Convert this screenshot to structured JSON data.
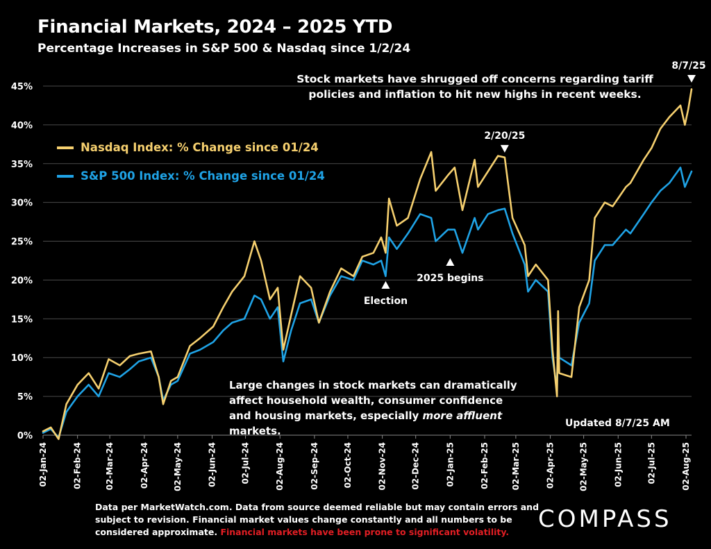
{
  "title": "Financial Markets, 2024 – 2025 YTD",
  "subtitle": "Percentage Increases in S&P 500 & Nasdaq since 1/2/24",
  "note_top": "Stock markets have shrugged off concerns regarding tariff policies and inflation to hit new highs in recent weeks.",
  "note_mid_pre": "Large changes in stock markets can dramatically affect household wealth, consumer confidence and housing markets, especially ",
  "note_mid_em": "more affluent",
  "note_mid_post": " markets.",
  "updated": "Updated 8/7/25 AM",
  "footer_text": "Data per MarketWatch.com. Data from source deemed reliable but may contain errors and subject to revision. Financial market values change constantly and all numbers to be considered approximate.",
  "footer_warning": "Financial markets have been prone to significant volatility.",
  "logo": "COMPASS",
  "colors": {
    "nasdaq": "#f6d06f",
    "sp500": "#1fa3e6",
    "grid": "#4a4a4a",
    "warning": "#e31e24"
  },
  "chart_data": {
    "type": "line",
    "title": "Financial Markets, 2024 – 2025 YTD",
    "subtitle": "Percentage Increases in S&P 500 & Nasdaq since 1/2/24",
    "ylim": [
      0,
      45
    ],
    "y_ticks": [
      0,
      5,
      10,
      15,
      20,
      25,
      30,
      35,
      40,
      45
    ],
    "y_tick_labels": [
      "0%",
      "5%",
      "10%",
      "15%",
      "20%",
      "25%",
      "30%",
      "35%",
      "40%",
      "45%"
    ],
    "x_tick_labels": [
      "02-Jan-24",
      "02-Feb-24",
      "02-Mar-24",
      "02-Apr-24",
      "02-May-24",
      "02-Jun-24",
      "02-Jul-24",
      "02-Aug-24",
      "02-Sep-24",
      "02-Oct-24",
      "02-Nov-24",
      "02-Dec-24",
      "02-Jan-25",
      "02-Feb-25",
      "02-Mar-25",
      "02-Apr-25",
      "02-May-25",
      "02-Jun-25",
      "02-Jul-25",
      "02-Aug-25"
    ],
    "x": [
      "2024-01-02",
      "2024-01-09",
      "2024-01-16",
      "2024-01-23",
      "2024-02-02",
      "2024-02-12",
      "2024-02-21",
      "2024-03-01",
      "2024-03-11",
      "2024-03-20",
      "2024-03-28",
      "2024-04-08",
      "2024-04-15",
      "2024-04-19",
      "2024-04-26",
      "2024-05-02",
      "2024-05-13",
      "2024-05-22",
      "2024-06-03",
      "2024-06-12",
      "2024-06-20",
      "2024-07-01",
      "2024-07-10",
      "2024-07-16",
      "2024-07-24",
      "2024-07-31",
      "2024-08-05",
      "2024-08-12",
      "2024-08-20",
      "2024-08-30",
      "2024-09-06",
      "2024-09-16",
      "2024-09-26",
      "2024-10-07",
      "2024-10-15",
      "2024-10-25",
      "2024-11-01",
      "2024-11-05",
      "2024-11-08",
      "2024-11-15",
      "2024-11-25",
      "2024-12-06",
      "2024-12-16",
      "2024-12-20",
      "2024-12-31",
      "2025-01-06",
      "2025-01-13",
      "2025-01-24",
      "2025-01-27",
      "2025-02-05",
      "2025-02-14",
      "2025-02-20",
      "2025-02-27",
      "2025-03-10",
      "2025-03-13",
      "2025-03-20",
      "2025-03-31",
      "2025-04-04",
      "2025-04-08",
      "2025-04-09",
      "2025-04-10",
      "2025-04-21",
      "2025-04-28",
      "2025-05-07",
      "2025-05-12",
      "2025-05-21",
      "2025-05-28",
      "2025-06-09",
      "2025-06-13",
      "2025-06-25",
      "2025-07-02",
      "2025-07-10",
      "2025-07-18",
      "2025-07-28",
      "2025-08-01",
      "2025-08-04",
      "2025-08-07"
    ],
    "series": [
      {
        "name": "Nasdaq Index: % Change since 01/24",
        "values": [
          0.5,
          1.0,
          -0.5,
          4.0,
          6.5,
          8.0,
          6.0,
          9.8,
          9.0,
          10.2,
          10.5,
          10.8,
          7.5,
          4.0,
          7.0,
          7.5,
          11.5,
          12.5,
          14.0,
          16.5,
          18.5,
          20.5,
          25.0,
          22.5,
          17.5,
          19.0,
          11.0,
          15.5,
          20.5,
          19.0,
          14.5,
          18.5,
          21.5,
          20.5,
          23.0,
          23.5,
          25.5,
          23.5,
          30.5,
          27.0,
          28.0,
          33.0,
          36.5,
          31.5,
          33.5,
          34.5,
          29.0,
          35.5,
          32.0,
          34.0,
          36.0,
          35.8,
          28.0,
          24.5,
          20.5,
          22.0,
          20.0,
          11.0,
          5.0,
          16.0,
          8.0,
          7.5,
          16.5,
          20.0,
          28.0,
          30.0,
          29.5,
          32.0,
          32.5,
          35.5,
          37.0,
          39.5,
          41.0,
          42.5,
          40.0,
          42.0,
          44.6
        ]
      },
      {
        "name": "S&P 500 Index: % Change since 01/24",
        "values": [
          0.3,
          0.8,
          -0.3,
          3.0,
          5.0,
          6.5,
          5.0,
          8.0,
          7.5,
          8.5,
          9.5,
          10.0,
          7.5,
          4.5,
          6.5,
          7.0,
          10.5,
          11.0,
          12.0,
          13.5,
          14.5,
          15.0,
          18.0,
          17.5,
          15.0,
          16.5,
          9.5,
          13.5,
          17.0,
          17.5,
          14.5,
          18.0,
          20.5,
          20.0,
          22.5,
          22.0,
          22.5,
          20.5,
          25.5,
          24.0,
          26.0,
          28.5,
          28.0,
          25.0,
          26.5,
          26.5,
          23.5,
          28.0,
          26.5,
          28.5,
          29.0,
          29.2,
          26.0,
          22.0,
          18.5,
          20.0,
          18.5,
          10.0,
          6.0,
          14.0,
          10.0,
          9.0,
          14.5,
          17.0,
          22.5,
          24.5,
          24.5,
          26.5,
          26.0,
          28.5,
          30.0,
          31.5,
          32.5,
          34.5,
          32.0,
          33.0,
          34.0
        ]
      }
    ],
    "annotations": [
      {
        "x": "2024-11-05",
        "label": "Election",
        "marker": "up-arrow-below"
      },
      {
        "x": "2025-01-02",
        "label": "2025 begins",
        "marker": "up-arrow-below"
      },
      {
        "x": "2025-02-20",
        "label": "2/20/25",
        "marker": "down-arrow-above"
      },
      {
        "x": "2025-08-07",
        "label": "8/7/25",
        "marker": "down-arrow-above"
      }
    ],
    "legend": "top-left",
    "grid": "horizontal"
  }
}
